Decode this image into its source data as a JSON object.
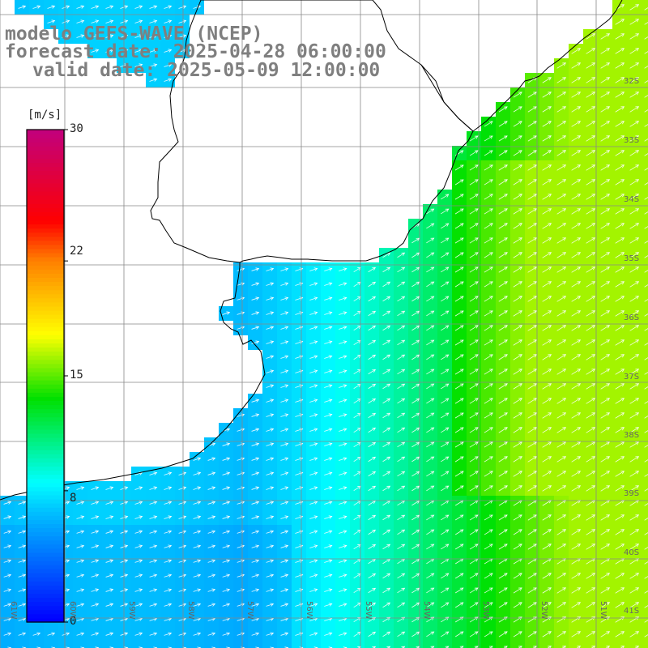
{
  "header": {
    "line1": "modelo GEFS-WAVE (NCEP)",
    "line2": "forecast date: 2025-04-28 06:00:00",
    "line3": "valid date: 2025-05-09 12:00:00"
  },
  "colorbar": {
    "unit": "[m/s]",
    "ticks": [
      "30",
      "22",
      "15",
      "8",
      "0"
    ],
    "tick_values": [
      30,
      22,
      15,
      8,
      0
    ],
    "range": [
      0,
      30
    ],
    "colors": [
      "#0000ff",
      "#00c0ff",
      "#00ffff",
      "#00e000",
      "#ffff00",
      "#ff8000",
      "#ff0000",
      "#c00080"
    ]
  },
  "map": {
    "grid": true,
    "lat_labels": [
      "32S",
      "33S",
      "34S",
      "35S",
      "36S",
      "37S",
      "38S",
      "39S",
      "40S",
      "41S"
    ],
    "lon_labels": [
      "61W",
      "60W",
      "59W",
      "58W",
      "57W",
      "56W",
      "55W",
      "54W",
      "53W",
      "52W",
      "51W"
    ],
    "arrow_direction": "toward northeast",
    "arrow_color": "#ffffff",
    "land_color": "#ffffff",
    "coast_color": "#000000"
  }
}
